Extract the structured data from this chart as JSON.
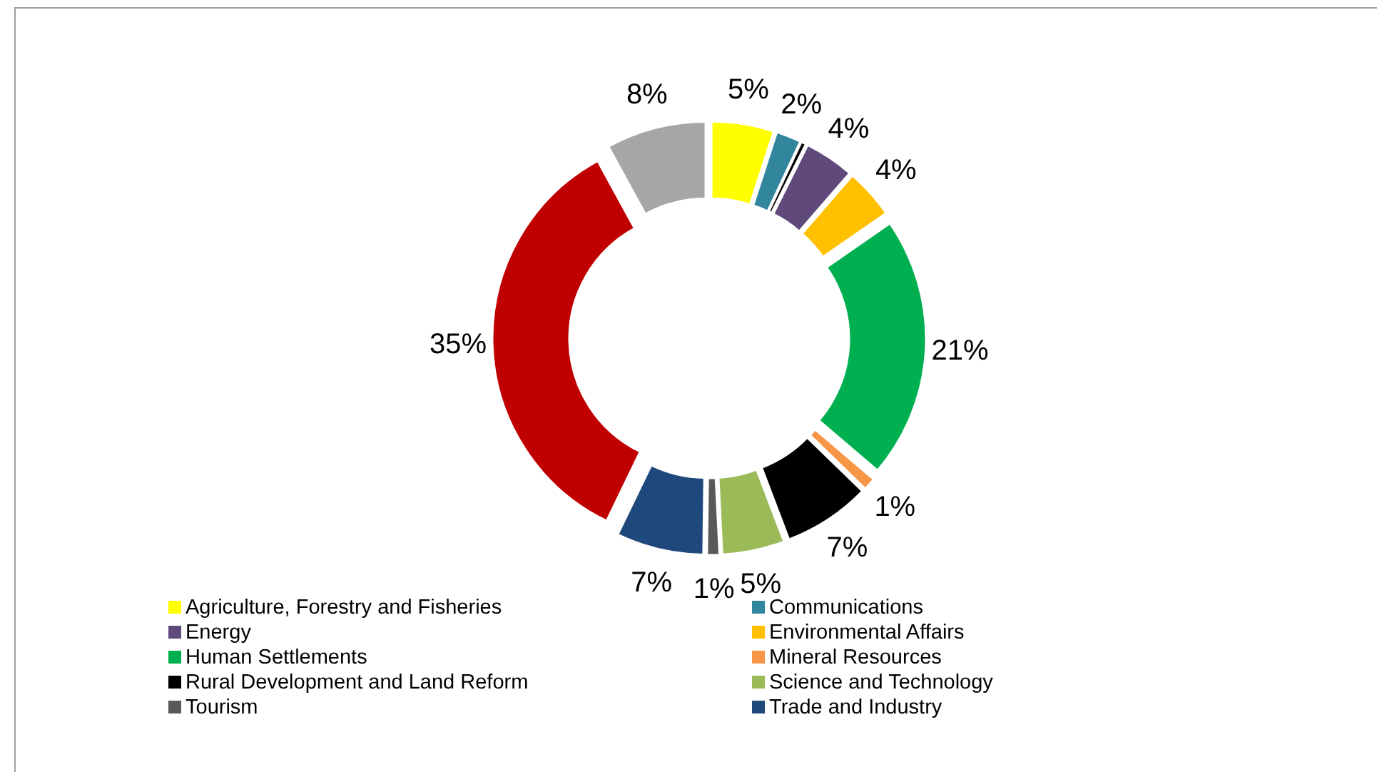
{
  "chart_data": {
    "type": "donut",
    "categories": [
      "Agriculture, Forestry and Fisheries",
      "Communications",
      null,
      "Energy",
      "Environmental Affairs",
      "Human Settlements",
      "Mineral Resources",
      "Rural Development and Land Reform",
      "Science and Technology",
      "Tourism",
      "Trade and Industry",
      null,
      null
    ],
    "values": [
      5,
      2,
      0.4,
      4,
      4,
      21,
      1,
      7,
      5,
      1,
      7,
      35,
      8
    ],
    "value_labels": [
      "5%",
      "2%",
      null,
      "4%",
      "4%",
      "21%",
      "1%",
      "7%",
      "5%",
      "1%",
      "7%",
      "35%",
      "8%"
    ],
    "colors": [
      "#ffff00",
      "#31859c",
      "#000000",
      "#604a7b",
      "#ffc000",
      "#00b050",
      "#f79646",
      "#000000",
      "#9bbb59",
      "#595959",
      "#1f497d",
      "#c00000",
      "#a6a6a6"
    ],
    "legend": "bottom"
  }
}
